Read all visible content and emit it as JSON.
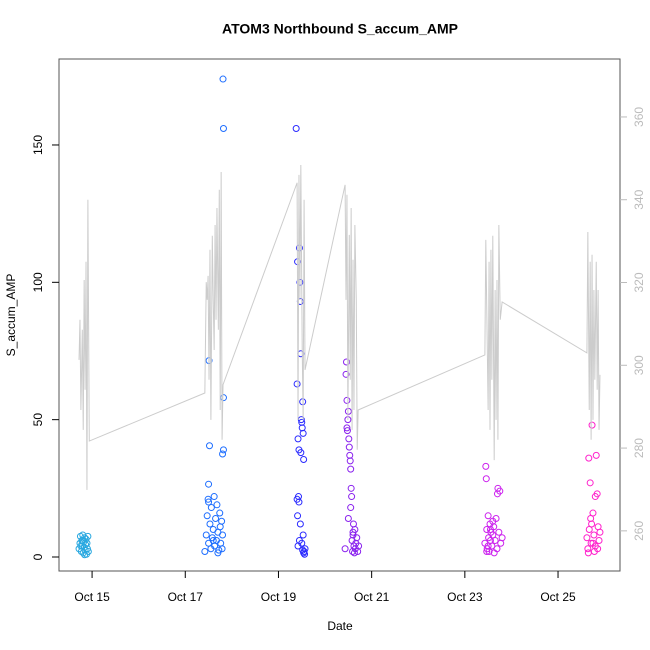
{
  "chart_data": {
    "type": "scatter",
    "title": "ATOM3 Northbound S_accum_AMP",
    "xlabel": "Date",
    "ylabel": "S_accum_AMP",
    "xlim": [
      14.29,
      26.33
    ],
    "xticks": [
      {
        "value": 15,
        "label": "Oct 15"
      },
      {
        "value": 17,
        "label": "Oct 17"
      },
      {
        "value": 19,
        "label": "Oct 19"
      },
      {
        "value": 21,
        "label": "Oct 21"
      },
      {
        "value": 23,
        "label": "Oct 23"
      },
      {
        "value": 25,
        "label": "Oct 25"
      }
    ],
    "ylim": [
      -5.1,
      181.3
    ],
    "yticks": [
      0,
      50,
      100,
      150
    ],
    "y2lim": [
      250.3,
      374
    ],
    "y2ticks": [
      260,
      280,
      300,
      320,
      340,
      360
    ],
    "y2color": "#bbbbbb",
    "series": [
      {
        "type": "scatter",
        "color": "#29a8e0",
        "x": [
          14.72,
          14.74,
          14.75,
          14.77,
          14.78,
          14.79,
          14.8,
          14.81,
          14.82,
          14.83,
          14.84,
          14.85,
          14.86,
          14.87,
          14.88,
          14.89,
          14.9,
          14.91,
          14.92,
          14.76,
          14.8,
          14.84
        ],
        "values": [
          3,
          5,
          7.5,
          2,
          6,
          4,
          8,
          1.5,
          5.5,
          3.5,
          7,
          2.5,
          4.5,
          6.5,
          1,
          5,
          3,
          7.5,
          2,
          4,
          6,
          0.8
        ]
      },
      {
        "type": "scatter",
        "color": "#1e6eff",
        "x": [
          17.42,
          17.45,
          17.47,
          17.49,
          17.5,
          17.51,
          17.52,
          17.53,
          17.55,
          17.56,
          17.58,
          17.6,
          17.62,
          17.63,
          17.65,
          17.67,
          17.68,
          17.7,
          17.72,
          17.74,
          17.75,
          17.76,
          17.78,
          17.79,
          17.8,
          17.81,
          17.82,
          17.82,
          17.82,
          17.8,
          17.5,
          17.5,
          17.7,
          17.6
        ],
        "values": [
          2,
          8,
          15,
          21,
          5,
          71.5,
          40.5,
          12,
          3,
          18,
          7,
          10,
          22,
          4,
          14,
          6,
          19,
          9,
          2.5,
          16,
          11,
          5,
          13,
          3,
          8,
          174,
          156,
          58,
          39,
          37.5,
          26.5,
          20,
          1.5,
          6
        ]
      },
      {
        "type": "scatter",
        "color": "#2a2aff",
        "x": [
          19.38,
          19.4,
          19.41,
          19.42,
          19.43,
          19.44,
          19.45,
          19.46,
          19.47,
          19.48,
          19.49,
          19.5,
          19.51,
          19.52,
          19.53,
          19.54,
          19.55,
          19.56,
          19.57,
          19.4,
          19.41,
          19.44,
          19.47,
          19.5,
          19.52,
          19.53,
          19.54,
          19.42,
          19.45,
          19.48
        ],
        "values": [
          156,
          63,
          107.5,
          43,
          22,
          39,
          112.5,
          100,
          93,
          74,
          50,
          49,
          47,
          56.5,
          45,
          35.5,
          2,
          1,
          3,
          21,
          15,
          20,
          12,
          5,
          2.5,
          8,
          1.5,
          4,
          6,
          38
        ]
      },
      {
        "type": "scatter",
        "color": "#8a22ee",
        "x": [
          20.43,
          20.45,
          20.46,
          20.47,
          20.48,
          20.49,
          20.5,
          20.51,
          20.52,
          20.53,
          20.54,
          20.55,
          20.56,
          20.57,
          20.58,
          20.59,
          20.6,
          20.61,
          20.62,
          20.63,
          20.64,
          20.65,
          20.66,
          20.68,
          20.7,
          20.72,
          20.47,
          20.5,
          20.55,
          20.6
        ],
        "values": [
          3,
          66.5,
          71,
          57,
          46,
          50,
          53,
          43,
          40,
          37,
          35,
          32,
          25,
          22,
          6,
          2,
          8,
          12,
          4,
          1.5,
          10,
          3,
          5,
          7,
          2,
          4,
          47,
          14,
          18,
          9
        ]
      },
      {
        "type": "scatter",
        "color": "#cc22ee",
        "x": [
          23.43,
          23.45,
          23.46,
          23.47,
          23.48,
          23.5,
          23.51,
          23.52,
          23.54,
          23.55,
          23.56,
          23.58,
          23.6,
          23.62,
          23.63,
          23.65,
          23.67,
          23.69,
          23.71,
          23.73,
          23.75,
          23.77,
          23.8,
          23.47,
          23.5,
          23.55,
          23.6,
          23.7
        ],
        "values": [
          5,
          33,
          28.5,
          10,
          3,
          15,
          7,
          2,
          12,
          6,
          9,
          4,
          8,
          11,
          1.5,
          6,
          14,
          3,
          25,
          9,
          24,
          5,
          7,
          2,
          4,
          10,
          13,
          23
        ]
      },
      {
        "type": "scatter",
        "color": "#ff22cc",
        "x": [
          25.62,
          25.64,
          25.66,
          25.67,
          25.69,
          25.71,
          25.72,
          25.73,
          25.75,
          25.77,
          25.78,
          25.8,
          25.82,
          25.84,
          25.86,
          25.88,
          25.9,
          25.65,
          25.7,
          25.75,
          25.8,
          25.85
        ],
        "values": [
          7,
          3,
          36,
          10,
          27,
          5,
          12,
          48,
          16,
          8,
          2,
          4,
          37,
          23,
          11,
          6,
          9,
          1.5,
          14,
          5,
          22,
          3
        ]
      },
      {
        "type": "line",
        "axis": "y2",
        "color": "#cccccc",
        "x": [
          14.72,
          14.74,
          14.76,
          14.79,
          14.81,
          14.83,
          14.85,
          14.87,
          14.89,
          14.91,
          14.94,
          17.42,
          17.45,
          17.47,
          17.49,
          17.51,
          17.53,
          17.55,
          17.58,
          17.6,
          17.62,
          17.64,
          17.66,
          17.68,
          17.71,
          17.73,
          17.75,
          17.77,
          17.79,
          17.81,
          19.4,
          19.42,
          19.44,
          19.46,
          19.48,
          19.51,
          19.53,
          19.55,
          19.57,
          20.43,
          20.45,
          20.47,
          20.49,
          20.52,
          20.54,
          20.56,
          20.58,
          20.6,
          20.62,
          20.64,
          20.67,
          20.69,
          20.71,
          23.43,
          23.45,
          23.5,
          23.52,
          23.54,
          23.56,
          23.58,
          23.6,
          23.63,
          23.65,
          23.67,
          23.69,
          23.71,
          23.73,
          23.76,
          23.8,
          25.62,
          25.64,
          25.67,
          25.69,
          25.71,
          25.73,
          25.75,
          25.77,
          25.79,
          25.82,
          25.84,
          25.86,
          25.88,
          25.9
        ],
        "values": [
          301.3,
          311,
          289.2,
          308.6,
          284.4,
          320.6,
          294.1,
          325,
          269.9,
          340,
          281.7,
          293.3,
          320.1,
          315.8,
          321.6,
          296.5,
          327.9,
          286.8,
          331.3,
          315.8,
          303.7,
          333.9,
          311,
          338,
          308.6,
          342.4,
          289.2,
          346.7,
          282,
          295.3,
          344.1,
          286.8,
          346,
          315.8,
          348.4,
          303.7,
          286.8,
          340,
          298.9,
          343.6,
          315.8,
          341.2,
          286.8,
          331.5,
          296.5,
          338,
          284.4,
          325.5,
          289.2,
          333.9,
          315.8,
          279.6,
          289.2,
          302.5,
          330.3,
          289.2,
          325,
          284.4,
          327.9,
          296.5,
          331.3,
          277.1,
          318.2,
          286.8,
          320.6,
          282,
          333.9,
          311,
          315.3,
          303,
          332.2,
          289.2,
          325,
          282,
          326.7,
          286.8,
          318.2,
          296.5,
          325,
          294.1,
          318.2,
          284.4,
          297.7
        ]
      }
    ]
  }
}
